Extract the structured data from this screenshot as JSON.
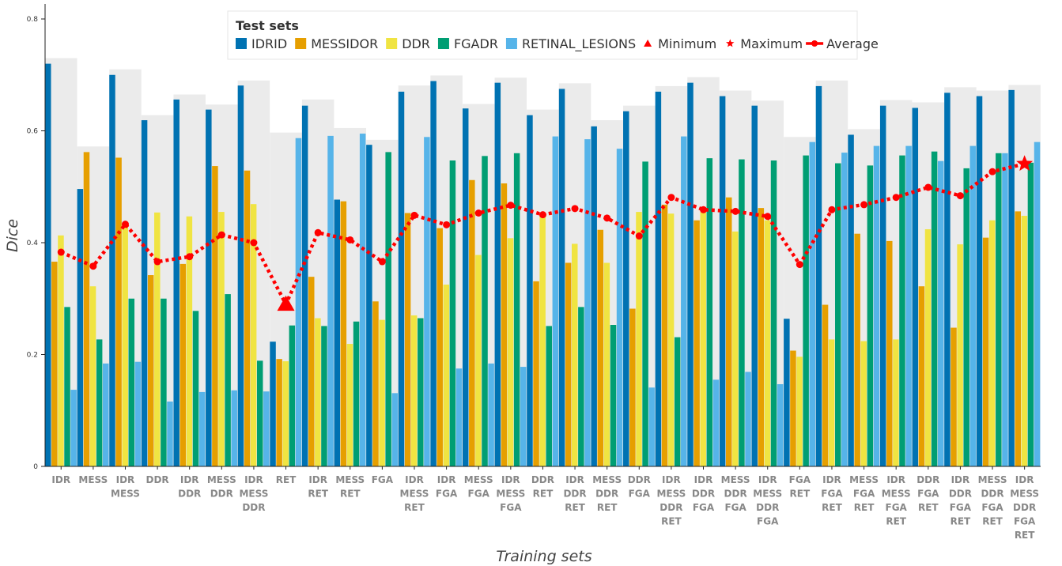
{
  "chart_data": {
    "type": "bar",
    "xlabel": "Training sets",
    "ylabel": "Dice",
    "ylim": [
      0,
      0.82
    ],
    "yticks": [
      0,
      0.2,
      0.4,
      0.6,
      0.8
    ],
    "ytick_labels": [
      "0",
      "0.2",
      "0.4",
      "0.6",
      "0.8"
    ],
    "categories": [
      [
        "IDR"
      ],
      [
        "MESS"
      ],
      [
        "IDR",
        "MESS"
      ],
      [
        "DDR"
      ],
      [
        "IDR",
        "DDR"
      ],
      [
        "MESS",
        "DDR"
      ],
      [
        "IDR",
        "MESS",
        "DDR"
      ],
      [
        "RET"
      ],
      [
        "IDR",
        "RET"
      ],
      [
        "MESS",
        "RET"
      ],
      [
        "FGA"
      ],
      [
        "IDR",
        "MESS",
        "RET"
      ],
      [
        "IDR",
        "FGA"
      ],
      [
        "MESS",
        "FGA"
      ],
      [
        "IDR",
        "MESS",
        "FGA"
      ],
      [
        "DDR",
        "RET"
      ],
      [
        "IDR",
        "DDR",
        "RET"
      ],
      [
        "MESS",
        "DDR",
        "RET"
      ],
      [
        "DDR",
        "FGA"
      ],
      [
        "IDR",
        "MESS",
        "DDR",
        "RET"
      ],
      [
        "IDR",
        "DDR",
        "FGA"
      ],
      [
        "MESS",
        "DDR",
        "FGA"
      ],
      [
        "IDR",
        "MESS",
        "DDR",
        "FGA"
      ],
      [
        "FGA",
        "RET"
      ],
      [
        "IDR",
        "FGA",
        "RET"
      ],
      [
        "MESS",
        "FGA",
        "RET"
      ],
      [
        "IDR",
        "MESS",
        "FGA",
        "RET"
      ],
      [
        "DDR",
        "FGA",
        "RET"
      ],
      [
        "IDR",
        "DDR",
        "FGA",
        "RET"
      ],
      [
        "MESS",
        "DDR",
        "FGA",
        "RET"
      ],
      [
        "IDR",
        "MESS",
        "DDR",
        "FGA",
        "RET"
      ]
    ],
    "series": [
      {
        "name": "IDRID",
        "color": "#0072b2",
        "values": [
          0.72,
          0.496,
          0.7,
          0.619,
          0.656,
          0.638,
          0.681,
          0.223,
          0.645,
          0.477,
          0.575,
          0.67,
          0.689,
          0.64,
          0.686,
          0.628,
          0.675,
          0.608,
          0.635,
          0.67,
          0.686,
          0.662,
          0.645,
          0.264,
          0.68,
          0.593,
          0.645,
          0.641,
          0.668,
          0.662,
          0.673
        ]
      },
      {
        "name": "MESSIDOR",
        "color": "#e69f00",
        "values": [
          0.366,
          0.562,
          0.552,
          0.342,
          0.362,
          0.537,
          0.529,
          0.192,
          0.339,
          0.474,
          0.295,
          0.453,
          0.426,
          0.512,
          0.506,
          0.331,
          0.364,
          0.423,
          0.282,
          0.468,
          0.44,
          0.481,
          0.462,
          0.207,
          0.289,
          0.416,
          0.403,
          0.322,
          0.248,
          0.409,
          0.456
        ]
      },
      {
        "name": "DDR",
        "color": "#f0e442",
        "values": [
          0.413,
          0.322,
          0.432,
          0.454,
          0.447,
          0.455,
          0.469,
          0.188,
          0.265,
          0.219,
          0.262,
          0.27,
          0.325,
          0.378,
          0.408,
          0.451,
          0.398,
          0.364,
          0.455,
          0.452,
          0.455,
          0.42,
          0.44,
          0.196,
          0.227,
          0.224,
          0.227,
          0.424,
          0.397,
          0.44,
          0.448
        ]
      },
      {
        "name": "FGADR",
        "color": "#009e73",
        "values": [
          0.285,
          0.227,
          0.3,
          0.3,
          0.278,
          0.308,
          0.189,
          0.252,
          0.251,
          0.259,
          0.562,
          0.265,
          0.547,
          0.555,
          0.56,
          0.251,
          0.285,
          0.253,
          0.545,
          0.231,
          0.551,
          0.549,
          0.547,
          0.556,
          0.542,
          0.538,
          0.556,
          0.563,
          0.533,
          0.56,
          0.543
        ]
      },
      {
        "name": "RETINAL_LESIONS",
        "color": "#56b4e9",
        "values": [
          0.137,
          0.184,
          0.187,
          0.116,
          0.133,
          0.136,
          0.134,
          0.587,
          0.591,
          0.595,
          0.131,
          0.589,
          0.175,
          0.184,
          0.178,
          0.59,
          0.585,
          0.568,
          0.141,
          0.59,
          0.155,
          0.169,
          0.147,
          0.58,
          0.561,
          0.573,
          0.573,
          0.546,
          0.573,
          0.56,
          0.58
        ]
      }
    ],
    "background_max": [
      0.73,
      0.572,
      0.71,
      0.628,
      0.665,
      0.647,
      0.69,
      0.597,
      0.656,
      0.605,
      0.584,
      0.681,
      0.699,
      0.648,
      0.695,
      0.638,
      0.685,
      0.619,
      0.645,
      0.68,
      0.696,
      0.672,
      0.654,
      0.589,
      0.69,
      0.603,
      0.655,
      0.651,
      0.678,
      0.672,
      0.682
    ],
    "average": {
      "name": "Average",
      "color": "#ff0000",
      "values": [
        0.383,
        0.358,
        0.433,
        0.366,
        0.375,
        0.414,
        0.4,
        0.29,
        0.418,
        0.405,
        0.366,
        0.449,
        0.432,
        0.453,
        0.467,
        0.45,
        0.461,
        0.444,
        0.412,
        0.481,
        0.459,
        0.456,
        0.447,
        0.361,
        0.459,
        0.468,
        0.481,
        0.499,
        0.484,
        0.527,
        0.541
      ]
    },
    "minimum": {
      "name": "Minimum",
      "index": 7,
      "value": 0.29
    },
    "maximum": {
      "name": "Maximum",
      "index": 30,
      "value": 0.541
    },
    "legend": {
      "title": "Test sets",
      "position": "top-center",
      "entries": [
        "IDRID",
        "MESSIDOR",
        "DDR",
        "FGADR",
        "RETINAL_LESIONS",
        "Minimum",
        "Maximum",
        "Average"
      ]
    },
    "background_color": "#ebebeb",
    "grid": false
  }
}
